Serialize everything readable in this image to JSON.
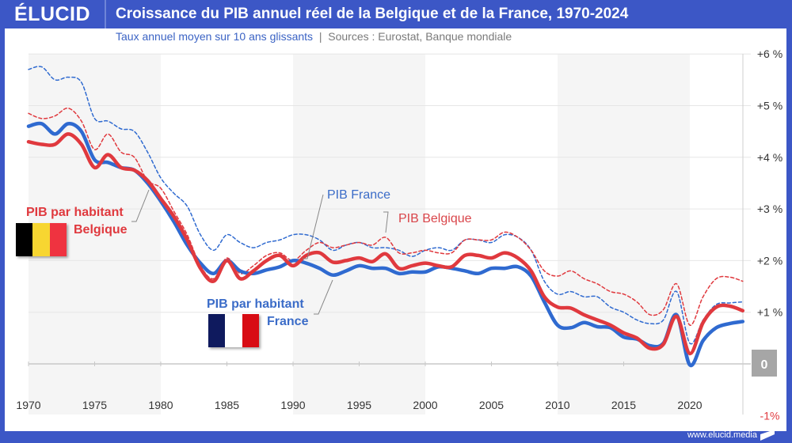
{
  "header": {
    "logo": "ÉLUCID",
    "title": "Croissance du PIB annuel réel de la Belgique et de la France, 1970-2024"
  },
  "subtitle": {
    "main": "Taux annuel moyen sur 10 ans glissants",
    "separator": "|",
    "sources": "Sources : Eurostat, Banque mondiale"
  },
  "footer": {
    "url": "www.elucid.media"
  },
  "labels": {
    "pib_france": "PIB France",
    "pib_belgique": "PIB Belgique",
    "pib_hab_be_1": "PIB par habitant",
    "pib_hab_be_2": "Belgique",
    "pib_hab_fr_1": "PIB par habitant",
    "pib_hab_fr_2": "France"
  },
  "colors": {
    "france": "#2f6ad0",
    "belgique": "#e0393e",
    "brand": "#3c57c6"
  },
  "flags": {
    "belgique": [
      "#000000",
      "#f7d631",
      "#ef3340"
    ],
    "france": [
      "#0f1a5e",
      "#ffffff",
      "#d80c14"
    ]
  },
  "chart_data": {
    "type": "line",
    "title": "Croissance du PIB annuel réel de la Belgique et de la France, 1970-2024",
    "subtitle": "Taux annuel moyen sur 10 ans glissants",
    "xlim": [
      1970,
      2024
    ],
    "ylim": [
      -1,
      6
    ],
    "x_ticks": [
      "1970",
      "1975",
      "1980",
      "1985",
      "1990",
      "1995",
      "2000",
      "2005",
      "2010",
      "2015",
      "2020"
    ],
    "y_ticks": [
      "-1%",
      "0",
      "+1 %",
      "+2 %",
      "+3 %",
      "+4 %",
      "+5 %",
      "+6 %"
    ],
    "grid": true,
    "shaded_decades": [
      [
        1970,
        1980
      ],
      [
        1990,
        2000
      ],
      [
        2010,
        2020
      ]
    ],
    "x_start": 1970,
    "series": [
      {
        "name": "PIB France",
        "style": "dashed",
        "color": "#2f6ad0",
        "values": [
          5.7,
          5.75,
          5.5,
          5.55,
          5.45,
          4.75,
          4.7,
          4.55,
          4.5,
          4.1,
          3.6,
          3.3,
          3.05,
          2.5,
          2.2,
          2.5,
          2.35,
          2.25,
          2.35,
          2.4,
          2.5,
          2.5,
          2.4,
          2.2,
          2.3,
          2.35,
          2.25,
          2.25,
          2.2,
          2.08,
          2.2,
          2.25,
          2.2,
          2.4,
          2.4,
          2.35,
          2.5,
          2.45,
          2.2,
          1.6,
          1.35,
          1.4,
          1.3,
          1.3,
          1.1,
          1.0,
          0.85,
          0.78,
          0.85,
          1.4,
          0.4,
          0.85,
          1.15,
          1.18,
          1.2
        ]
      },
      {
        "name": "PIB Belgique",
        "style": "dashed",
        "color": "#e0393e",
        "values": [
          4.85,
          4.75,
          4.8,
          4.95,
          4.7,
          4.15,
          4.45,
          4.1,
          4.0,
          3.55,
          3.4,
          2.95,
          2.5,
          1.9,
          1.65,
          2.05,
          1.75,
          1.9,
          2.1,
          2.15,
          2.0,
          2.2,
          2.35,
          2.25,
          2.3,
          2.35,
          2.3,
          2.45,
          2.15,
          2.15,
          2.2,
          2.15,
          2.15,
          2.4,
          2.4,
          2.4,
          2.55,
          2.45,
          2.2,
          1.8,
          1.7,
          1.8,
          1.65,
          1.55,
          1.4,
          1.35,
          1.2,
          0.95,
          1.05,
          1.55,
          0.75,
          1.3,
          1.65,
          1.68,
          1.6
        ]
      },
      {
        "name": "PIB par habitant France",
        "style": "solid",
        "color": "#2f6ad0",
        "values": [
          4.6,
          4.65,
          4.45,
          4.65,
          4.5,
          3.95,
          3.9,
          3.8,
          3.75,
          3.5,
          3.15,
          2.75,
          2.3,
          1.95,
          1.75,
          2.0,
          1.8,
          1.75,
          1.82,
          1.88,
          2.0,
          1.95,
          1.85,
          1.72,
          1.8,
          1.9,
          1.85,
          1.85,
          1.75,
          1.78,
          1.78,
          1.88,
          1.85,
          1.8,
          1.75,
          1.85,
          1.85,
          1.88,
          1.7,
          1.2,
          0.75,
          0.7,
          0.8,
          0.72,
          0.7,
          0.52,
          0.48,
          0.35,
          0.4,
          0.95,
          -0.02,
          0.45,
          0.7,
          0.78,
          0.82
        ]
      },
      {
        "name": "PIB par habitant Belgique",
        "style": "solid",
        "color": "#e0393e",
        "values": [
          4.3,
          4.25,
          4.25,
          4.45,
          4.25,
          3.8,
          4.05,
          3.8,
          3.75,
          3.55,
          3.2,
          2.85,
          2.4,
          1.85,
          1.6,
          2.0,
          1.65,
          1.8,
          2.0,
          2.1,
          1.9,
          2.1,
          2.15,
          1.97,
          2.0,
          2.05,
          1.98,
          2.13,
          1.85,
          1.9,
          1.95,
          1.9,
          1.88,
          2.1,
          2.1,
          2.05,
          2.15,
          2.05,
          1.8,
          1.3,
          1.1,
          1.08,
          0.95,
          0.85,
          0.75,
          0.6,
          0.5,
          0.3,
          0.38,
          0.92,
          0.2,
          0.8,
          1.1,
          1.12,
          1.03
        ]
      }
    ]
  }
}
